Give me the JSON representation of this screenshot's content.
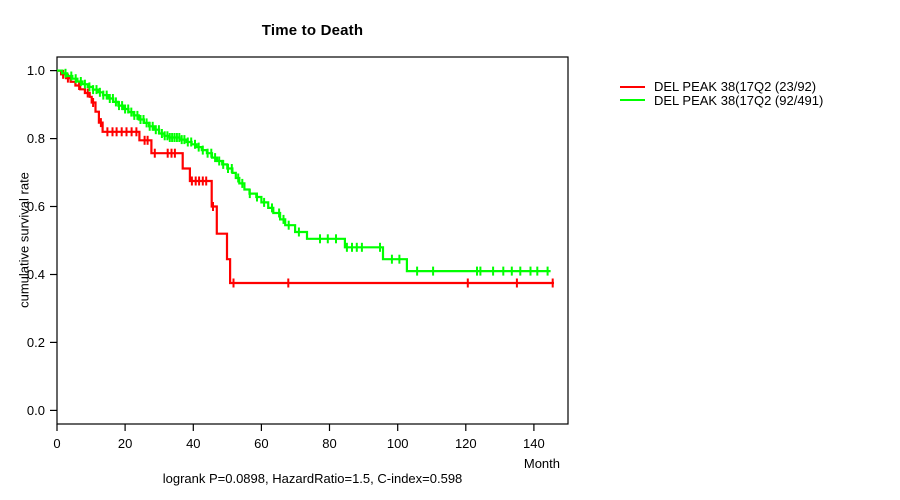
{
  "figure": {
    "title": "Time to Death",
    "x_axis_label": "Month",
    "y_axis_label": "cumulative survival rate",
    "footer_annotation": "logrank P=0.0898, HazardRatio=1.5, C-index=0.598"
  },
  "chart_data": {
    "type": "line",
    "subtype": "kaplan-meier-step-curve",
    "title": "Time to Death",
    "xlabel": "Month",
    "ylabel": "cumulative survival rate",
    "annotation": "logrank P=0.0898, HazardRatio=1.5, C-index=0.598",
    "xlim": [
      0,
      150
    ],
    "ylim": [
      0,
      1
    ],
    "y_padded": [
      -0.04,
      1.04
    ],
    "x_ticks": [
      0,
      20,
      40,
      60,
      80,
      100,
      120,
      140
    ],
    "y_ticks": [
      "0.0",
      "0.2",
      "0.4",
      "0.6",
      "0.8",
      "1.0"
    ],
    "grid": false,
    "legend_position": "right-outside",
    "series": [
      {
        "name": "DEL PEAK 38(17Q2 (23/92)",
        "color": "#ff0000",
        "end_time": 145.9,
        "steps": [
          [
            0,
            1.0
          ],
          [
            1.2,
            0.989
          ],
          [
            2.6,
            0.978
          ],
          [
            4.0,
            0.967
          ],
          [
            5.4,
            0.956
          ],
          [
            6.8,
            0.945
          ],
          [
            8.2,
            0.934
          ],
          [
            9.6,
            0.923
          ],
          [
            10.2,
            0.906
          ],
          [
            11.3,
            0.879
          ],
          [
            12.3,
            0.847
          ],
          [
            13.4,
            0.82
          ],
          [
            24.2,
            0.795
          ],
          [
            27.7,
            0.757
          ],
          [
            36.9,
            0.712
          ],
          [
            39.0,
            0.675
          ],
          [
            45.4,
            0.6
          ],
          [
            46.9,
            0.52
          ],
          [
            49.9,
            0.445
          ],
          [
            50.8,
            0.375
          ]
        ],
        "censor_times": [
          1.8,
          3.2,
          6.5,
          9.0,
          10.6,
          12.9,
          14.8,
          16.3,
          17.5,
          19.0,
          20.4,
          21.9,
          23.3,
          25.7,
          26.6,
          28.7,
          32.5,
          33.6,
          34.6,
          39.6,
          40.7,
          41.7,
          42.8,
          43.8,
          45.8,
          51.8,
          67.9,
          120.6,
          135.0,
          145.5
        ]
      },
      {
        "name": "DEL PEAK 38(17Q2 (92/491)",
        "color": "#00ff00",
        "end_time": 144.9,
        "steps": [
          [
            0,
            1.0
          ],
          [
            1.5,
            0.992
          ],
          [
            3,
            0.984
          ],
          [
            4.5,
            0.976
          ],
          [
            6,
            0.968
          ],
          [
            7.5,
            0.96
          ],
          [
            9,
            0.952
          ],
          [
            10.5,
            0.944
          ],
          [
            12,
            0.936
          ],
          [
            13.5,
            0.928
          ],
          [
            15,
            0.918
          ],
          [
            16.5,
            0.908
          ],
          [
            18,
            0.897
          ],
          [
            19.5,
            0.887
          ],
          [
            21,
            0.878
          ],
          [
            22.5,
            0.868
          ],
          [
            24,
            0.856
          ],
          [
            25.5,
            0.846
          ],
          [
            27,
            0.836
          ],
          [
            28.5,
            0.826
          ],
          [
            30,
            0.815
          ],
          [
            31.5,
            0.808
          ],
          [
            33,
            0.803
          ],
          [
            36,
            0.797
          ],
          [
            38,
            0.79
          ],
          [
            39.5,
            0.783
          ],
          [
            41,
            0.775
          ],
          [
            42.5,
            0.766
          ],
          [
            44,
            0.757
          ],
          [
            45.5,
            0.744
          ],
          [
            47,
            0.734
          ],
          [
            48.5,
            0.724
          ],
          [
            50,
            0.712
          ],
          [
            51.5,
            0.699
          ],
          [
            52.5,
            0.684
          ],
          [
            53.5,
            0.668
          ],
          [
            55,
            0.65
          ],
          [
            56.5,
            0.638
          ],
          [
            58.5,
            0.628
          ],
          [
            60,
            0.612
          ],
          [
            62,
            0.596
          ],
          [
            63.5,
            0.581
          ],
          [
            65.5,
            0.562
          ],
          [
            67,
            0.545
          ],
          [
            69.9,
            0.525
          ],
          [
            73.4,
            0.505
          ],
          [
            84.5,
            0.48
          ],
          [
            95.7,
            0.445
          ],
          [
            102.7,
            0.41
          ]
        ],
        "censor_times": [
          2.5,
          4.2,
          5.5,
          7,
          8.2,
          9.5,
          10.6,
          11.6,
          12.6,
          13.6,
          14.6,
          15.5,
          16.4,
          17.3,
          18.2,
          19.1,
          20,
          20.9,
          21.8,
          22.7,
          23.6,
          24.5,
          25.4,
          26.3,
          27.2,
          28.1,
          29,
          29.9,
          30.8,
          31.6,
          32.4,
          33.1,
          33.8,
          34.5,
          35.2,
          35.9,
          36.6,
          37.4,
          38.4,
          39.4,
          40.5,
          41.6,
          42.8,
          44.2,
          45.3,
          46.4,
          47.6,
          48.8,
          50.2,
          51.3,
          53.2,
          54.4,
          56.6,
          58.7,
          60.8,
          63.1,
          65.2,
          66.5,
          68,
          71,
          77.2,
          79.5,
          81.9,
          85.1,
          86.6,
          88,
          89.5,
          94.8,
          98.3,
          100.5,
          105.7,
          110.4,
          123.3,
          124.3,
          128,
          131,
          133.5,
          136,
          139,
          141,
          144
        ]
      }
    ]
  }
}
